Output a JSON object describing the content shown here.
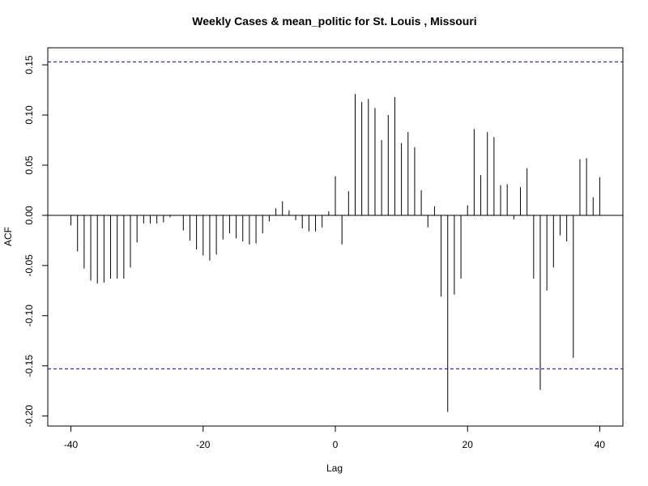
{
  "chart_data": {
    "type": "bar",
    "title": "Weekly Cases & mean_politic for St. Louis , Missouri",
    "xlabel": "Lag",
    "ylabel": "ACF",
    "xlim": [
      -43.5,
      43.5
    ],
    "ylim": [
      -0.21,
      0.167
    ],
    "x_ticks": [
      -40,
      -20,
      0,
      20,
      40
    ],
    "x_tick_labels": [
      "-40",
      "-20",
      "0",
      "20",
      "40"
    ],
    "y_ticks": [
      -0.2,
      -0.15,
      -0.1,
      -0.05,
      0.0,
      0.05,
      0.1,
      0.15
    ],
    "y_tick_labels": [
      "-0.20",
      "-0.15",
      "-0.10",
      "-0.05",
      "0.00",
      "0.05",
      "0.10",
      "0.15"
    ],
    "grid": false,
    "confidence_bound": 0.153,
    "confidence_color": "#0000cc",
    "lags": [
      -40,
      -39,
      -38,
      -37,
      -36,
      -35,
      -34,
      -33,
      -32,
      -31,
      -30,
      -29,
      -28,
      -27,
      -26,
      -25,
      -24,
      -23,
      -22,
      -21,
      -20,
      -19,
      -18,
      -17,
      -16,
      -15,
      -14,
      -13,
      -12,
      -11,
      -10,
      -9,
      -8,
      -7,
      -6,
      -5,
      -4,
      -3,
      -2,
      -1,
      0,
      1,
      2,
      3,
      4,
      5,
      6,
      7,
      8,
      9,
      10,
      11,
      12,
      13,
      14,
      15,
      16,
      17,
      18,
      19,
      20,
      21,
      22,
      23,
      24,
      25,
      26,
      27,
      28,
      29,
      30,
      31,
      32,
      33,
      34,
      35,
      36,
      37,
      38,
      39,
      40
    ],
    "values": [
      -0.01,
      -0.036,
      -0.053,
      -0.065,
      -0.068,
      -0.067,
      -0.063,
      -0.063,
      -0.063,
      -0.052,
      -0.027,
      -0.008,
      -0.008,
      -0.008,
      -0.007,
      -0.002,
      0.0,
      -0.015,
      -0.025,
      -0.034,
      -0.04,
      -0.045,
      -0.039,
      -0.024,
      -0.018,
      -0.023,
      -0.026,
      -0.029,
      -0.028,
      -0.018,
      -0.006,
      0.007,
      0.014,
      0.005,
      -0.005,
      -0.013,
      -0.016,
      -0.016,
      -0.012,
      0.004,
      0.039,
      -0.029,
      0.024,
      0.121,
      0.113,
      0.116,
      0.107,
      0.075,
      0.1,
      0.118,
      0.072,
      0.083,
      0.068,
      0.025,
      -0.012,
      0.009,
      -0.081,
      -0.196,
      -0.079,
      -0.063,
      0.01,
      0.086,
      0.04,
      0.083,
      0.078,
      0.03,
      0.031,
      -0.004,
      0.028,
      0.047,
      -0.063,
      -0.174,
      -0.075,
      -0.052,
      -0.02,
      -0.026,
      -0.142,
      0.056,
      0.057,
      0.018,
      0.038
    ]
  }
}
